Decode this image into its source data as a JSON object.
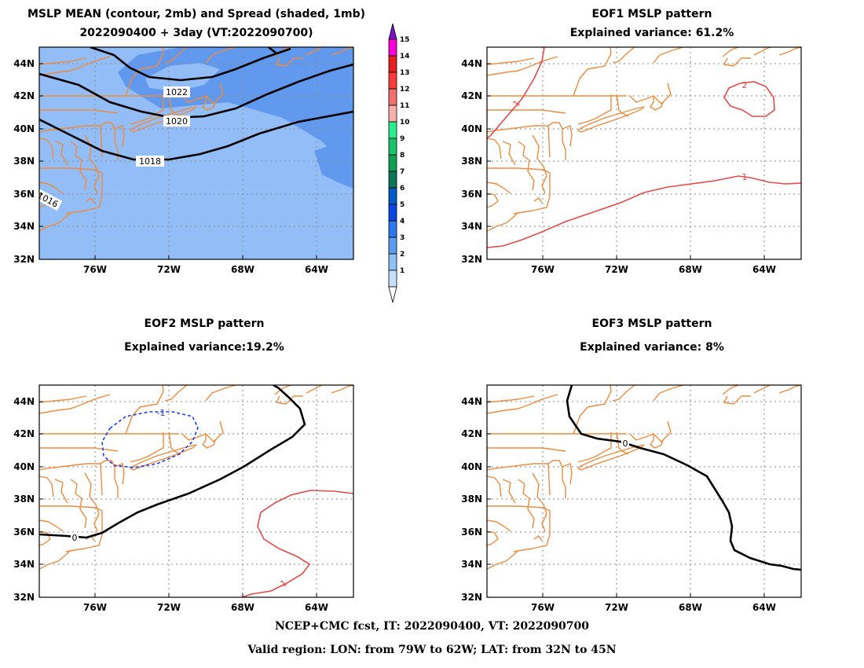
{
  "panel1": {
    "title1": "MSLP MEAN (contour, 2mb) and Spread (shaded, 1mb)",
    "title2": "2022090400 + 3day (VT:2022090700)",
    "contour_labels": [
      "1022",
      "1020",
      "1018",
      "1016"
    ]
  },
  "panel2": {
    "title1": "EOF1 MSLP pattern",
    "title2": "Explained variance: 61.2%",
    "contour_labels": [
      "1",
      "2",
      "1"
    ]
  },
  "panel3": {
    "title1": "EOF2 MSLP pattern",
    "title2": "Explained variance:19.2%",
    "contour_labels": [
      "-1",
      "0",
      "1"
    ]
  },
  "panel4": {
    "title1": "EOF3 MSLP pattern",
    "title2": "Explained variance: 8%",
    "contour_labels": [
      "0"
    ]
  },
  "axes": {
    "lat_labels": [
      "44N",
      "42N",
      "40N",
      "38N",
      "36N",
      "34N",
      "32N"
    ],
    "lon_labels": [
      "76W",
      "72W",
      "68W",
      "64W"
    ]
  },
  "colorbar": {
    "labels": [
      "15",
      "14",
      "13",
      "12",
      "11",
      "10",
      "9",
      "8",
      "7",
      "6",
      "5",
      "4",
      "3",
      "2",
      "1"
    ],
    "colors": [
      "#7a10c8",
      "#ff00dc",
      "#e61e1e",
      "#ff3a3a",
      "#f46e6e",
      "#f8b0a8",
      "#28ee8c",
      "#18c468",
      "#10a050",
      "#0a7858",
      "#045ac8",
      "#0a46e6",
      "#2a78f0",
      "#5a9ef0",
      "#8cc2f8",
      "#c6e0fc"
    ]
  },
  "colors": {
    "coast": "#ef8b3c",
    "spread_2": "#92bdf7",
    "spread_3": "#6199ef",
    "contour_pos": "#e84848",
    "contour_neg": "#1c3cf0",
    "contour_mean": "#000000"
  },
  "footer": {
    "line1": "NCEP+CMC fcst, IT: 2022090400, VT: 2022090700",
    "line2": "Valid region: LON: from 79W to 62W; LAT: from 32N to 45N"
  }
}
